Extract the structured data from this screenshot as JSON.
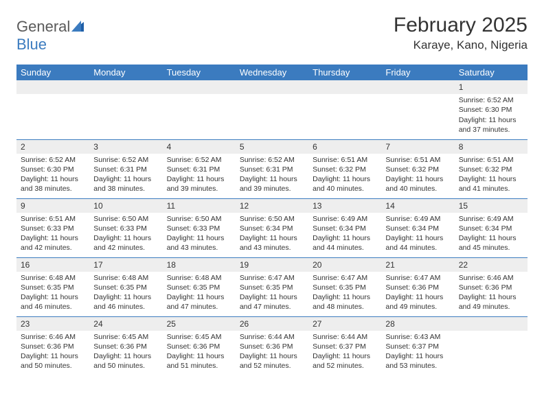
{
  "brand": {
    "part1": "General",
    "part2": "Blue"
  },
  "title": "February 2025",
  "location": "Karaye, Kano, Nigeria",
  "colors": {
    "header_bg": "#3b7bbf",
    "header_text": "#ffffff",
    "daynum_bg": "#eeeeee",
    "row_divider": "#3b7bbf",
    "text": "#333333",
    "background": "#ffffff"
  },
  "typography": {
    "title_fontsize": 30,
    "location_fontsize": 17,
    "header_cell_fontsize": 13,
    "daynum_fontsize": 12,
    "body_fontsize": 10.5
  },
  "weekdays": [
    "Sunday",
    "Monday",
    "Tuesday",
    "Wednesday",
    "Thursday",
    "Friday",
    "Saturday"
  ],
  "weeks": [
    [
      {
        "n": "",
        "lines": []
      },
      {
        "n": "",
        "lines": []
      },
      {
        "n": "",
        "lines": []
      },
      {
        "n": "",
        "lines": []
      },
      {
        "n": "",
        "lines": []
      },
      {
        "n": "",
        "lines": []
      },
      {
        "n": "1",
        "lines": [
          "Sunrise: 6:52 AM",
          "Sunset: 6:30 PM",
          "Daylight: 11 hours and 37 minutes."
        ]
      }
    ],
    [
      {
        "n": "2",
        "lines": [
          "Sunrise: 6:52 AM",
          "Sunset: 6:30 PM",
          "Daylight: 11 hours and 38 minutes."
        ]
      },
      {
        "n": "3",
        "lines": [
          "Sunrise: 6:52 AM",
          "Sunset: 6:31 PM",
          "Daylight: 11 hours and 38 minutes."
        ]
      },
      {
        "n": "4",
        "lines": [
          "Sunrise: 6:52 AM",
          "Sunset: 6:31 PM",
          "Daylight: 11 hours and 39 minutes."
        ]
      },
      {
        "n": "5",
        "lines": [
          "Sunrise: 6:52 AM",
          "Sunset: 6:31 PM",
          "Daylight: 11 hours and 39 minutes."
        ]
      },
      {
        "n": "6",
        "lines": [
          "Sunrise: 6:51 AM",
          "Sunset: 6:32 PM",
          "Daylight: 11 hours and 40 minutes."
        ]
      },
      {
        "n": "7",
        "lines": [
          "Sunrise: 6:51 AM",
          "Sunset: 6:32 PM",
          "Daylight: 11 hours and 40 minutes."
        ]
      },
      {
        "n": "8",
        "lines": [
          "Sunrise: 6:51 AM",
          "Sunset: 6:32 PM",
          "Daylight: 11 hours and 41 minutes."
        ]
      }
    ],
    [
      {
        "n": "9",
        "lines": [
          "Sunrise: 6:51 AM",
          "Sunset: 6:33 PM",
          "Daylight: 11 hours and 42 minutes."
        ]
      },
      {
        "n": "10",
        "lines": [
          "Sunrise: 6:50 AM",
          "Sunset: 6:33 PM",
          "Daylight: 11 hours and 42 minutes."
        ]
      },
      {
        "n": "11",
        "lines": [
          "Sunrise: 6:50 AM",
          "Sunset: 6:33 PM",
          "Daylight: 11 hours and 43 minutes."
        ]
      },
      {
        "n": "12",
        "lines": [
          "Sunrise: 6:50 AM",
          "Sunset: 6:34 PM",
          "Daylight: 11 hours and 43 minutes."
        ]
      },
      {
        "n": "13",
        "lines": [
          "Sunrise: 6:49 AM",
          "Sunset: 6:34 PM",
          "Daylight: 11 hours and 44 minutes."
        ]
      },
      {
        "n": "14",
        "lines": [
          "Sunrise: 6:49 AM",
          "Sunset: 6:34 PM",
          "Daylight: 11 hours and 44 minutes."
        ]
      },
      {
        "n": "15",
        "lines": [
          "Sunrise: 6:49 AM",
          "Sunset: 6:34 PM",
          "Daylight: 11 hours and 45 minutes."
        ]
      }
    ],
    [
      {
        "n": "16",
        "lines": [
          "Sunrise: 6:48 AM",
          "Sunset: 6:35 PM",
          "Daylight: 11 hours and 46 minutes."
        ]
      },
      {
        "n": "17",
        "lines": [
          "Sunrise: 6:48 AM",
          "Sunset: 6:35 PM",
          "Daylight: 11 hours and 46 minutes."
        ]
      },
      {
        "n": "18",
        "lines": [
          "Sunrise: 6:48 AM",
          "Sunset: 6:35 PM",
          "Daylight: 11 hours and 47 minutes."
        ]
      },
      {
        "n": "19",
        "lines": [
          "Sunrise: 6:47 AM",
          "Sunset: 6:35 PM",
          "Daylight: 11 hours and 47 minutes."
        ]
      },
      {
        "n": "20",
        "lines": [
          "Sunrise: 6:47 AM",
          "Sunset: 6:35 PM",
          "Daylight: 11 hours and 48 minutes."
        ]
      },
      {
        "n": "21",
        "lines": [
          "Sunrise: 6:47 AM",
          "Sunset: 6:36 PM",
          "Daylight: 11 hours and 49 minutes."
        ]
      },
      {
        "n": "22",
        "lines": [
          "Sunrise: 6:46 AM",
          "Sunset: 6:36 PM",
          "Daylight: 11 hours and 49 minutes."
        ]
      }
    ],
    [
      {
        "n": "23",
        "lines": [
          "Sunrise: 6:46 AM",
          "Sunset: 6:36 PM",
          "Daylight: 11 hours and 50 minutes."
        ]
      },
      {
        "n": "24",
        "lines": [
          "Sunrise: 6:45 AM",
          "Sunset: 6:36 PM",
          "Daylight: 11 hours and 50 minutes."
        ]
      },
      {
        "n": "25",
        "lines": [
          "Sunrise: 6:45 AM",
          "Sunset: 6:36 PM",
          "Daylight: 11 hours and 51 minutes."
        ]
      },
      {
        "n": "26",
        "lines": [
          "Sunrise: 6:44 AM",
          "Sunset: 6:36 PM",
          "Daylight: 11 hours and 52 minutes."
        ]
      },
      {
        "n": "27",
        "lines": [
          "Sunrise: 6:44 AM",
          "Sunset: 6:37 PM",
          "Daylight: 11 hours and 52 minutes."
        ]
      },
      {
        "n": "28",
        "lines": [
          "Sunrise: 6:43 AM",
          "Sunset: 6:37 PM",
          "Daylight: 11 hours and 53 minutes."
        ]
      },
      {
        "n": "",
        "lines": []
      }
    ]
  ]
}
